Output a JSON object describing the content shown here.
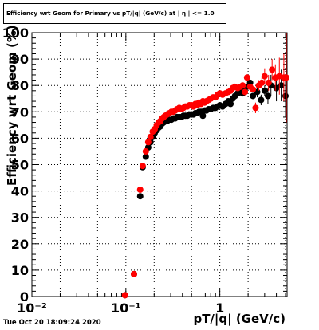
{
  "title": "Efficiency wrt Geom for Primary vs pT/|q| (GeV/c) at | η | <= 1.0",
  "date_stamp": "Tue Oct 20 18:09:24 2020",
  "colors": {
    "series_black": "#000000",
    "series_red": "#ff0000",
    "grid": "#000000",
    "frame": "#000000"
  },
  "chart_data": {
    "type": "scatter",
    "title": "Efficiency wrt Geom for Primary vs pT/|q| (GeV/c) at | η | <= 1.0",
    "xlabel": "pT/|q| (GeV/c)",
    "ylabel": "Efficiency wrt Geom (%)",
    "xscale": "log",
    "xlim": [
      0.01,
      5.2
    ],
    "ylim": [
      0,
      100
    ],
    "grid": true,
    "x_ticks": [
      {
        "value": 0.01,
        "label": "10⁻²"
      },
      {
        "value": 0.1,
        "label": "10⁻¹"
      },
      {
        "value": 1,
        "label": "1"
      }
    ],
    "y_ticks": [
      0,
      10,
      20,
      30,
      40,
      50,
      60,
      70,
      80,
      90,
      100
    ],
    "series": [
      {
        "color": "#000000",
        "points": [
          [
            0.098,
            0.5,
            0
          ],
          [
            0.122,
            8.5,
            0
          ],
          [
            0.142,
            38.0,
            0
          ],
          [
            0.151,
            49.0,
            0
          ],
          [
            0.163,
            53.0,
            0
          ],
          [
            0.173,
            56.5,
            0
          ],
          [
            0.183,
            58.5,
            0
          ],
          [
            0.193,
            60.5,
            0
          ],
          [
            0.203,
            62.0,
            0
          ],
          [
            0.213,
            63.0,
            0
          ],
          [
            0.223,
            64.0,
            0
          ],
          [
            0.233,
            64.5,
            0
          ],
          [
            0.243,
            65.5,
            0
          ],
          [
            0.253,
            66.0,
            0
          ],
          [
            0.263,
            66.5,
            0
          ],
          [
            0.275,
            66.5,
            0
          ],
          [
            0.29,
            67.0,
            0
          ],
          [
            0.305,
            67.0,
            0
          ],
          [
            0.32,
            67.5,
            0
          ],
          [
            0.335,
            67.5,
            0
          ],
          [
            0.35,
            68.0,
            0
          ],
          [
            0.37,
            68.0,
            0
          ],
          [
            0.39,
            68.0,
            0
          ],
          [
            0.41,
            68.5,
            0
          ],
          [
            0.43,
            68.5,
            0
          ],
          [
            0.45,
            68.5,
            0
          ],
          [
            0.475,
            69.0,
            0
          ],
          [
            0.5,
            69.0,
            0
          ],
          [
            0.525,
            69.0,
            0
          ],
          [
            0.55,
            69.5,
            0
          ],
          [
            0.575,
            69.5,
            0
          ],
          [
            0.6,
            70.0,
            0
          ],
          [
            0.63,
            70.0,
            0
          ],
          [
            0.66,
            68.5,
            0
          ],
          [
            0.69,
            70.5,
            0
          ],
          [
            0.72,
            70.5,
            0
          ],
          [
            0.76,
            71.0,
            0
          ],
          [
            0.8,
            71.0,
            0
          ],
          [
            0.85,
            71.5,
            0
          ],
          [
            0.9,
            71.5,
            0
          ],
          [
            0.95,
            72.0,
            0
          ],
          [
            1.0,
            72.5,
            0
          ],
          [
            1.07,
            72.0,
            0
          ],
          [
            1.15,
            73.0,
            0
          ],
          [
            1.23,
            74.0,
            0
          ],
          [
            1.3,
            73.0,
            0
          ],
          [
            1.37,
            75.0,
            0
          ],
          [
            1.45,
            76.0,
            0
          ],
          [
            1.55,
            77.0,
            0
          ],
          [
            1.65,
            77.5,
            0
          ],
          [
            1.75,
            77.0,
            1
          ],
          [
            1.85,
            79.0,
            0
          ],
          [
            1.95,
            79.5,
            0
          ],
          [
            2.1,
            81.0,
            0
          ],
          [
            2.25,
            76.0,
            1
          ],
          [
            2.5,
            77.5,
            2
          ],
          [
            2.75,
            74.5,
            2
          ],
          [
            3.0,
            78.0,
            2
          ],
          [
            3.25,
            76.0,
            3
          ],
          [
            3.5,
            80.0,
            4
          ],
          [
            4.0,
            79.0,
            5
          ],
          [
            4.5,
            80.0,
            6
          ],
          [
            5.0,
            76.0,
            8
          ]
        ]
      },
      {
        "color": "#ff0000",
        "points": [
          [
            0.098,
            0.5,
            0
          ],
          [
            0.122,
            8.5,
            0
          ],
          [
            0.142,
            40.5,
            0
          ],
          [
            0.151,
            49.5,
            0
          ],
          [
            0.163,
            55.0,
            0
          ],
          [
            0.173,
            58.5,
            0
          ],
          [
            0.183,
            60.5,
            0
          ],
          [
            0.193,
            62.5,
            0
          ],
          [
            0.203,
            63.5,
            0
          ],
          [
            0.213,
            65.0,
            0
          ],
          [
            0.223,
            66.0,
            0
          ],
          [
            0.233,
            66.5,
            0
          ],
          [
            0.243,
            67.5,
            0
          ],
          [
            0.253,
            68.0,
            0
          ],
          [
            0.263,
            68.5,
            0
          ],
          [
            0.275,
            69.0,
            0
          ],
          [
            0.29,
            69.5,
            0
          ],
          [
            0.305,
            70.0,
            0
          ],
          [
            0.32,
            70.0,
            0
          ],
          [
            0.335,
            70.5,
            0
          ],
          [
            0.35,
            71.0,
            0
          ],
          [
            0.37,
            71.5,
            0
          ],
          [
            0.39,
            71.0,
            0
          ],
          [
            0.41,
            71.5,
            0
          ],
          [
            0.43,
            72.0,
            0
          ],
          [
            0.45,
            72.0,
            0
          ],
          [
            0.475,
            72.5,
            0
          ],
          [
            0.5,
            72.5,
            0
          ],
          [
            0.525,
            72.0,
            0
          ],
          [
            0.55,
            73.0,
            0
          ],
          [
            0.575,
            72.5,
            0
          ],
          [
            0.6,
            73.5,
            0
          ],
          [
            0.63,
            73.0,
            0
          ],
          [
            0.66,
            74.0,
            0
          ],
          [
            0.69,
            73.5,
            0
          ],
          [
            0.72,
            74.0,
            0
          ],
          [
            0.76,
            74.5,
            0
          ],
          [
            0.8,
            75.0,
            0
          ],
          [
            0.85,
            75.5,
            0
          ],
          [
            0.9,
            75.5,
            0
          ],
          [
            0.95,
            76.5,
            0
          ],
          [
            1.0,
            77.0,
            0
          ],
          [
            1.07,
            76.5,
            0
          ],
          [
            1.15,
            77.0,
            0
          ],
          [
            1.23,
            77.5,
            0
          ],
          [
            1.3,
            78.0,
            0
          ],
          [
            1.37,
            79.0,
            0
          ],
          [
            1.45,
            79.5,
            0
          ],
          [
            1.55,
            79.0,
            0
          ],
          [
            1.65,
            79.5,
            0
          ],
          [
            1.75,
            80.0,
            1
          ],
          [
            1.85,
            77.5,
            1
          ],
          [
            1.95,
            83.0,
            1
          ],
          [
            2.1,
            79.5,
            1
          ],
          [
            2.25,
            78.5,
            1
          ],
          [
            2.4,
            71.5,
            2
          ],
          [
            2.6,
            80.0,
            2
          ],
          [
            2.8,
            81.0,
            2
          ],
          [
            3.0,
            83.5,
            3
          ],
          [
            3.3,
            81.0,
            3
          ],
          [
            3.6,
            86.0,
            4
          ],
          [
            3.9,
            83.0,
            5
          ],
          [
            4.3,
            83.5,
            7
          ],
          [
            4.8,
            83.0,
            9
          ],
          [
            5.1,
            83.0,
            17
          ]
        ]
      }
    ]
  }
}
